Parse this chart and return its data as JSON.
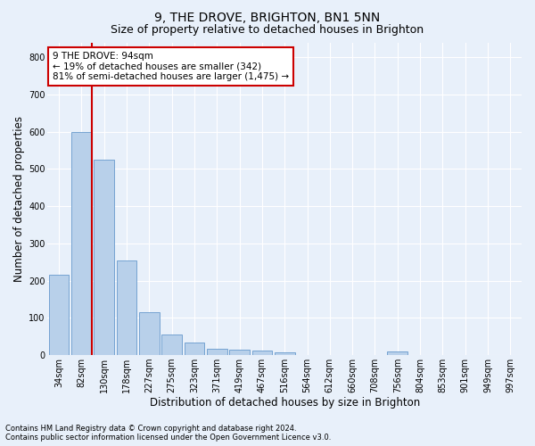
{
  "title": "9, THE DROVE, BRIGHTON, BN1 5NN",
  "subtitle": "Size of property relative to detached houses in Brighton",
  "xlabel": "Distribution of detached houses by size in Brighton",
  "ylabel": "Number of detached properties",
  "footnote1": "Contains HM Land Registry data © Crown copyright and database right 2024.",
  "footnote2": "Contains public sector information licensed under the Open Government Licence v3.0.",
  "categories": [
    "34sqm",
    "82sqm",
    "130sqm",
    "178sqm",
    "227sqm",
    "275sqm",
    "323sqm",
    "371sqm",
    "419sqm",
    "467sqm",
    "516sqm",
    "564sqm",
    "612sqm",
    "660sqm",
    "708sqm",
    "756sqm",
    "804sqm",
    "853sqm",
    "901sqm",
    "949sqm",
    "997sqm"
  ],
  "values": [
    215,
    600,
    525,
    255,
    115,
    55,
    33,
    18,
    15,
    12,
    8,
    0,
    0,
    0,
    0,
    10,
    0,
    0,
    0,
    0,
    0
  ],
  "bar_color": "#b8d0ea",
  "bar_edge_color": "#6699cc",
  "vline_color": "#cc0000",
  "annotation_text": "9 THE DROVE: 94sqm\n← 19% of detached houses are smaller (342)\n81% of semi-detached houses are larger (1,475) →",
  "annotation_box_color": "#ffffff",
  "annotation_box_edge_color": "#cc0000",
  "ylim": [
    0,
    840
  ],
  "yticks": [
    0,
    100,
    200,
    300,
    400,
    500,
    600,
    700,
    800
  ],
  "bg_color": "#e8f0fa",
  "plot_bg_color": "#e8f0fa",
  "grid_color": "#ffffff",
  "title_fontsize": 10,
  "subtitle_fontsize": 9,
  "axis_label_fontsize": 8.5,
  "tick_fontsize": 7,
  "annotation_fontsize": 7.5
}
